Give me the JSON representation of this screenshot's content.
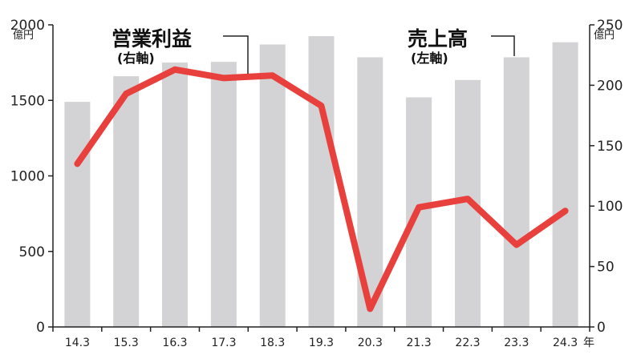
{
  "chart_data": {
    "type": "bar+line",
    "categories": [
      "14.3",
      "15.3",
      "16.3",
      "17.3",
      "18.3",
      "19.3",
      "20.3",
      "21.3",
      "22.3",
      "23.3",
      "24.3"
    ],
    "x_unit": "年",
    "series": [
      {
        "name": "売上高",
        "axis_note": "(左軸)",
        "type": "bar",
        "axis": "left",
        "values": [
          1490,
          1660,
          1750,
          1755,
          1870,
          1925,
          1785,
          1520,
          1635,
          1785,
          1885
        ]
      },
      {
        "name": "営業利益",
        "axis_note": "(右軸)",
        "type": "line",
        "axis": "right",
        "values": [
          135,
          193,
          213,
          206,
          208,
          183,
          15,
          99,
          106,
          68,
          96
        ]
      }
    ],
    "left_axis": {
      "unit": "億円",
      "ylim": [
        0,
        2000
      ],
      "ticks": [
        "0",
        "500",
        "1000",
        "1500",
        "2000"
      ]
    },
    "right_axis": {
      "unit": "億円",
      "ylim": [
        0,
        250
      ],
      "ticks": [
        "0",
        "50",
        "100",
        "150",
        "200",
        "250"
      ]
    },
    "grid": false,
    "legend": "inline labels with leader lines",
    "colors": {
      "bar": "#d3d3d5",
      "line": "#e8413d",
      "axis": "#222222"
    }
  }
}
